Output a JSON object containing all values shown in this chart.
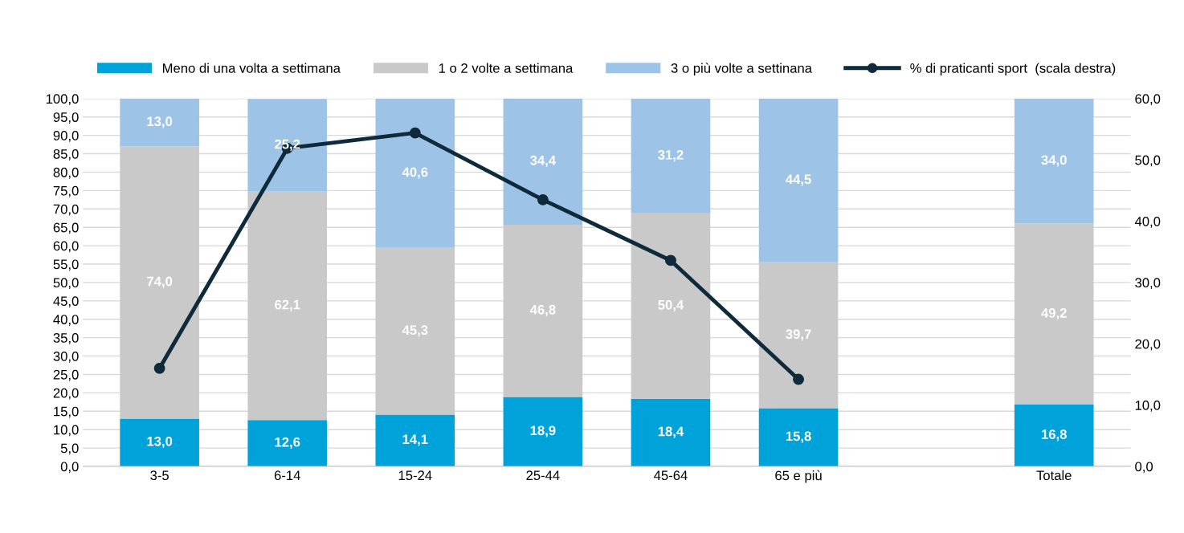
{
  "chart_data": {
    "type": "bar",
    "stacked": true,
    "categories": [
      "3-5",
      "6-14",
      "15-24",
      "25-44",
      "45-64",
      "65 e più",
      null,
      "Totale"
    ],
    "series": [
      {
        "name": "Meno di una volta a settimana",
        "color": "#00a3d9",
        "values": [
          13.0,
          12.6,
          14.1,
          18.9,
          18.4,
          15.8,
          null,
          16.8
        ],
        "value_labels": [
          "13,0",
          "12,6",
          "14,1",
          "18,9",
          "18,4",
          "15,8",
          null,
          "16,8"
        ]
      },
      {
        "name": "1 o 2 volte a settimana",
        "color": "#c9c9c9",
        "values": [
          74.0,
          62.1,
          45.3,
          46.8,
          50.4,
          39.7,
          null,
          49.2
        ],
        "value_labels": [
          "74,0",
          "62,1",
          "45,3",
          "46,8",
          "50,4",
          "39,7",
          null,
          "49,2"
        ]
      },
      {
        "name": "3 o più volte a settinana",
        "color": "#9dc3e6",
        "values": [
          13.0,
          25.2,
          40.6,
          34.4,
          31.2,
          44.5,
          null,
          34.0
        ],
        "value_labels": [
          "13,0",
          "25,2",
          "40,6",
          "34,4",
          "31,2",
          "44,5",
          null,
          "34,0"
        ]
      },
      {
        "name": "% di praticanti sport  (scala destra)",
        "type": "line",
        "axis": "y2",
        "color": "#0f2a3a",
        "marker": "circle",
        "values": [
          16.0,
          51.9,
          54.4,
          43.5,
          33.6,
          14.2,
          null,
          null
        ]
      }
    ],
    "ylim": [
      0,
      100
    ],
    "yticks": [
      {
        "value": 0,
        "label": "0,0"
      },
      {
        "value": 5,
        "label": "5,0"
      },
      {
        "value": 10,
        "label": "10,0"
      },
      {
        "value": 15,
        "label": "15,0"
      },
      {
        "value": 20,
        "label": "20,0"
      },
      {
        "value": 25,
        "label": "25,0"
      },
      {
        "value": 30,
        "label": "30,0"
      },
      {
        "value": 35,
        "label": "35,0"
      },
      {
        "value": 40,
        "label": "40,0"
      },
      {
        "value": 45,
        "label": "45,0"
      },
      {
        "value": 50,
        "label": "50,0"
      },
      {
        "value": 55,
        "label": "55,0"
      },
      {
        "value": 60,
        "label": "60,0"
      },
      {
        "value": 65,
        "label": "65,0"
      },
      {
        "value": 70,
        "label": "70,0"
      },
      {
        "value": 75,
        "label": "75,0"
      },
      {
        "value": 80,
        "label": "80,0"
      },
      {
        "value": 85,
        "label": "85,0"
      },
      {
        "value": 90,
        "label": "90,0"
      },
      {
        "value": 95,
        "label": "95,0"
      },
      {
        "value": 100,
        "label": "100,0"
      }
    ],
    "y2lim": [
      0,
      60
    ],
    "y2ticks": [
      {
        "value": 0,
        "label": "0,0"
      },
      {
        "value": 10,
        "label": "10,0"
      },
      {
        "value": 20,
        "label": "20,0"
      },
      {
        "value": 30,
        "label": "30,0"
      },
      {
        "value": 40,
        "label": "40,0"
      },
      {
        "value": 50,
        "label": "50,0"
      },
      {
        "value": 60,
        "label": "60,0"
      }
    ],
    "grid": "y",
    "legend": "top"
  }
}
